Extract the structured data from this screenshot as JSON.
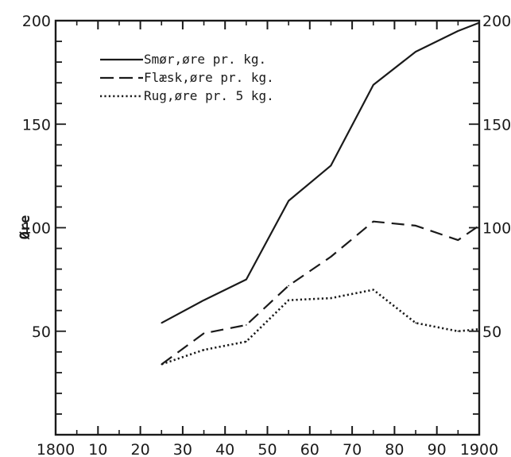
{
  "chart_data": {
    "type": "line",
    "ylabel": "Øre",
    "xlim": [
      1800,
      1900
    ],
    "ylim": [
      0,
      200
    ],
    "x_ticks": [
      {
        "value": 1800,
        "label": "1800"
      },
      {
        "value": 1810,
        "label": "10"
      },
      {
        "value": 1820,
        "label": "20"
      },
      {
        "value": 1830,
        "label": "30"
      },
      {
        "value": 1840,
        "label": "40"
      },
      {
        "value": 1850,
        "label": "50"
      },
      {
        "value": 1860,
        "label": "60"
      },
      {
        "value": 1870,
        "label": "70"
      },
      {
        "value": 1880,
        "label": "80"
      },
      {
        "value": 1890,
        "label": "90"
      },
      {
        "value": 1900,
        "label": "1900"
      }
    ],
    "y_ticks_left": [
      {
        "value": 50,
        "label": "50"
      },
      {
        "value": 100,
        "label": "100"
      },
      {
        "value": 150,
        "label": "150"
      },
      {
        "value": 200,
        "label": "200"
      }
    ],
    "y_ticks_right": [
      {
        "value": 50,
        "label": "50"
      },
      {
        "value": 100,
        "label": "100"
      },
      {
        "value": 150,
        "label": "150"
      },
      {
        "value": 200,
        "label": "200"
      }
    ],
    "grid": false,
    "legend_position": "top-left",
    "series": [
      {
        "name": "Smør,øre pr. kg.",
        "style": "solid",
        "color": "#1a1a1a",
        "x": [
          1825,
          1835,
          1845,
          1855,
          1865,
          1875,
          1885,
          1895,
          1900
        ],
        "y": [
          54,
          65,
          75,
          113,
          130,
          169,
          185,
          195,
          199
        ]
      },
      {
        "name": "Flæsk,øre pr. kg.",
        "style": "dashed",
        "color": "#1a1a1a",
        "x": [
          1825,
          1835,
          1845,
          1855,
          1865,
          1875,
          1885,
          1895,
          1900
        ],
        "y": [
          34,
          49,
          53,
          72,
          86,
          103,
          101,
          94,
          101
        ]
      },
      {
        "name": "Rug,øre pr. 5 kg.",
        "style": "dotted",
        "color": "#1a1a1a",
        "x": [
          1825,
          1835,
          1845,
          1855,
          1865,
          1875,
          1885,
          1895,
          1900
        ],
        "y": [
          34,
          41,
          45,
          65,
          66,
          70,
          54,
          50,
          51
        ]
      }
    ]
  }
}
